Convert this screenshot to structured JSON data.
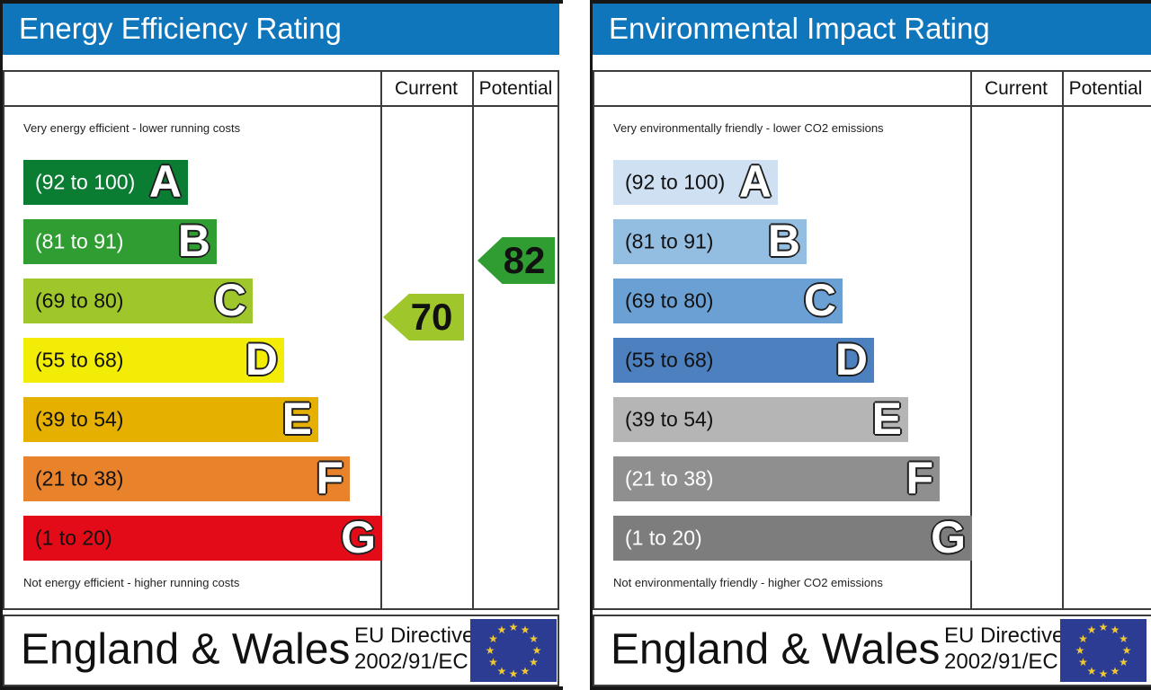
{
  "colors": {
    "title_bar_blue": "#0f76bb",
    "grid_line": "#3c3c3b",
    "panel_border": "#161616",
    "eu_flag_blue": "#2b3c92",
    "eu_star_yellow": "#f2ca30"
  },
  "panels": [
    {
      "title": "Energy Efficiency Rating",
      "columns": {
        "current": "Current",
        "potential": "Potential"
      },
      "top_note": "Very energy efficient - lower running costs",
      "bottom_note": "Not energy efficient - higher running costs",
      "bands": [
        {
          "range": "(92 to 100)",
          "letter": "A",
          "color": "#0a7d33",
          "label_color": "#ffffff"
        },
        {
          "range": "(81 to 91)",
          "letter": "B",
          "color": "#2f9d32",
          "label_color": "#ffffff"
        },
        {
          "range": "(69 to 80)",
          "letter": "C",
          "color": "#9fc62a",
          "label_color": "#111111"
        },
        {
          "range": "(55 to 68)",
          "letter": "D",
          "color": "#f3ec06",
          "label_color": "#111111"
        },
        {
          "range": "(39 to 54)",
          "letter": "E",
          "color": "#e6b000",
          "label_color": "#111111"
        },
        {
          "range": "(21 to 38)",
          "letter": "F",
          "color": "#e8832b",
          "label_color": "#111111"
        },
        {
          "range": "(1 to 20)",
          "letter": "G",
          "color": "#e30b17",
          "label_color": "#111111"
        }
      ],
      "current": {
        "value": "70",
        "color": "#9fc62a"
      },
      "potential": {
        "value": "82",
        "color": "#2f9d32"
      },
      "footer": {
        "region": "England & Wales",
        "directive_line1": "EU Directive",
        "directive_line2": "2002/91/EC"
      }
    },
    {
      "title": "Environmental Impact Rating",
      "columns": {
        "current": "Current",
        "potential": "Potential"
      },
      "top_note": "Very environmentally friendly - lower CO2 emissions",
      "bottom_note": "Not environmentally friendly - higher CO2 emissions",
      "bands": [
        {
          "range": "(92 to 100)",
          "letter": "A",
          "color": "#cfe0f2",
          "label_color": "#111111"
        },
        {
          "range": "(81 to 91)",
          "letter": "B",
          "color": "#94bde2",
          "label_color": "#111111"
        },
        {
          "range": "(69 to 80)",
          "letter": "C",
          "color": "#6aa0d4",
          "label_color": "#111111"
        },
        {
          "range": "(55 to 68)",
          "letter": "D",
          "color": "#4d80bf",
          "label_color": "#111111"
        },
        {
          "range": "(39 to 54)",
          "letter": "E",
          "color": "#b5b5b5",
          "label_color": "#111111"
        },
        {
          "range": "(21 to 38)",
          "letter": "F",
          "color": "#8f8f8f",
          "label_color": "#ffffff"
        },
        {
          "range": "(1 to 20)",
          "letter": "G",
          "color": "#7d7d7d",
          "label_color": "#ffffff"
        }
      ],
      "footer": {
        "region": "England & Wales",
        "directive_line1": "EU Directive",
        "directive_line2": "2002/91/EC"
      }
    }
  ],
  "chart_data": [
    {
      "type": "bar",
      "title": "Energy Efficiency Rating",
      "categories": [
        "A",
        "B",
        "C",
        "D",
        "E",
        "F",
        "G"
      ],
      "band_ranges": [
        [
          92,
          100
        ],
        [
          81,
          91
        ],
        [
          69,
          80
        ],
        [
          55,
          68
        ],
        [
          39,
          54
        ],
        [
          21,
          38
        ],
        [
          1,
          20
        ]
      ],
      "series": [
        {
          "name": "Current",
          "value": 70,
          "band": "C"
        },
        {
          "name": "Potential",
          "value": 82,
          "band": "B"
        }
      ],
      "xlabel": "",
      "ylabel": "",
      "legend_position": "table-columns"
    },
    {
      "type": "bar",
      "title": "Environmental Impact Rating",
      "categories": [
        "A",
        "B",
        "C",
        "D",
        "E",
        "F",
        "G"
      ],
      "band_ranges": [
        [
          92,
          100
        ],
        [
          81,
          91
        ],
        [
          69,
          80
        ],
        [
          55,
          68
        ],
        [
          39,
          54
        ],
        [
          21,
          38
        ],
        [
          1,
          20
        ]
      ],
      "series": [
        {
          "name": "Current",
          "value": null
        },
        {
          "name": "Potential",
          "value": null
        }
      ],
      "xlabel": "",
      "ylabel": "",
      "legend_position": "table-columns"
    }
  ]
}
